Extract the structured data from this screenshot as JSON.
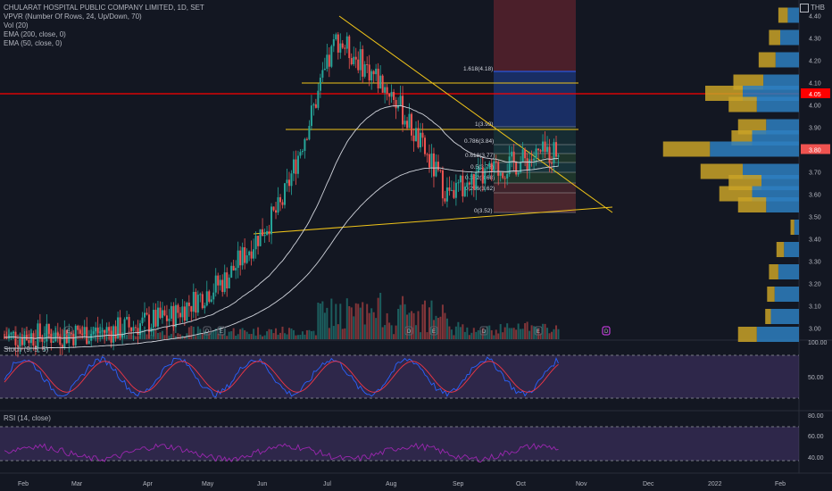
{
  "legend": {
    "symbol": "CHULARAT HOSPITAL PUBLIC COMPANY LIMITED, 1D, SET",
    "indicators": [
      "VPVR (Number Of Rows, 24, Up/Down, 70)",
      "Vol (20)",
      "EMA (200, close, 0)",
      "EMA (50, close, 0)"
    ]
  },
  "currency": "THB",
  "stoch_label": "Stoch (9, 5, 5)",
  "rsi_label": "RSI (14, close)",
  "colors": {
    "up": "#26a69a",
    "down": "#ef5350",
    "bg": "#131722",
    "trend": "#f0c419",
    "level": "#ff0000",
    "vp_up": "#2e7fbf",
    "vp_down": "#c9a227",
    "stoch_k": "#2962ff",
    "stoch_d": "#f23645",
    "rsi": "#9c27b0"
  },
  "price_axis": {
    "ticks": [
      "4.40",
      "4.30",
      "4.20",
      "4.10",
      "4.00",
      "3.90",
      "3.80",
      "3.70",
      "3.60",
      "3.50",
      "3.40",
      "3.30",
      "3.20",
      "3.10",
      "3.00"
    ],
    "min": 2.95,
    "max": 4.47
  },
  "price_tags": {
    "red": "4.05",
    "last": "3.80"
  },
  "time_axis": [
    "Feb",
    "Mar",
    "Apr",
    "May",
    "Jun",
    "Jul",
    "Aug",
    "Sep",
    "Oct",
    "Nov",
    "Dec",
    "2022",
    "Feb"
  ],
  "stoch_axis": [
    "100.00",
    "50.00"
  ],
  "rsi_axis": [
    "80.00",
    "60.00",
    "40.00"
  ],
  "fib_labels": [
    "1.618(4.18)",
    "1(3.93)",
    "0.786(3.84)",
    "0.618(3.77)",
    "0.5(3.73)",
    "0.382(3.68)",
    "0.236(3.62)",
    "0(3.52)"
  ],
  "event_markers": [
    "E",
    "D",
    "E",
    "D",
    "E",
    "D",
    "E",
    "D"
  ],
  "chart_data": {
    "type": "candlestick",
    "instrument": "CHULARAT HOSPITAL PUBLIC COMPANY LIMITED",
    "timeframe": "1D",
    "ylim": [
      2.95,
      4.47
    ],
    "candles_monthly_path": [
      {
        "month": "Jan",
        "close": 2.96
      },
      {
        "month": "Feb",
        "close": 2.97
      },
      {
        "month": "Mar",
        "close": 2.99
      },
      {
        "month": "Apr",
        "close": 3.05
      },
      {
        "month": "May",
        "close": 3.22
      },
      {
        "month": "Jun",
        "close": 3.55
      },
      {
        "month": "Jul",
        "close": 4.3
      },
      {
        "month": "Aug",
        "close": 4.05
      },
      {
        "month": "Sep",
        "close": 3.6
      },
      {
        "month": "Oct",
        "close": 3.72
      },
      {
        "month": "Oct-end",
        "close": 3.8
      }
    ],
    "horizontal_levels": [
      4.05,
      4.13,
      3.93
    ],
    "volume_profile": {
      "rows": [
        {
          "price": 4.4,
          "up": 12,
          "down": 10
        },
        {
          "price": 4.3,
          "up": 20,
          "down": 12
        },
        {
          "price": 4.2,
          "up": 25,
          "down": 18
        },
        {
          "price": 4.1,
          "up": 38,
          "down": 32
        },
        {
          "price": 4.05,
          "up": 60,
          "down": 40
        },
        {
          "price": 4.0,
          "up": 45,
          "down": 30
        },
        {
          "price": 3.9,
          "up": 35,
          "down": 30
        },
        {
          "price": 3.85,
          "up": 50,
          "down": 22
        },
        {
          "price": 3.8,
          "up": 95,
          "down": 50
        },
        {
          "price": 3.7,
          "up": 60,
          "down": 45
        },
        {
          "price": 3.65,
          "up": 40,
          "down": 35
        },
        {
          "price": 3.6,
          "up": 50,
          "down": 35
        },
        {
          "price": 3.55,
          "up": 35,
          "down": 30
        },
        {
          "price": 3.45,
          "up": 5,
          "down": 4
        },
        {
          "price": 3.35,
          "up": 16,
          "down": 8
        },
        {
          "price": 3.25,
          "up": 22,
          "down": 10
        },
        {
          "price": 3.15,
          "up": 26,
          "down": 8
        },
        {
          "price": 3.05,
          "up": 30,
          "down": 6
        },
        {
          "price": 2.97,
          "up": 45,
          "down": 20
        }
      ]
    },
    "stoch_range": [
      0,
      100
    ],
    "rsi_range": [
      20,
      90
    ]
  }
}
